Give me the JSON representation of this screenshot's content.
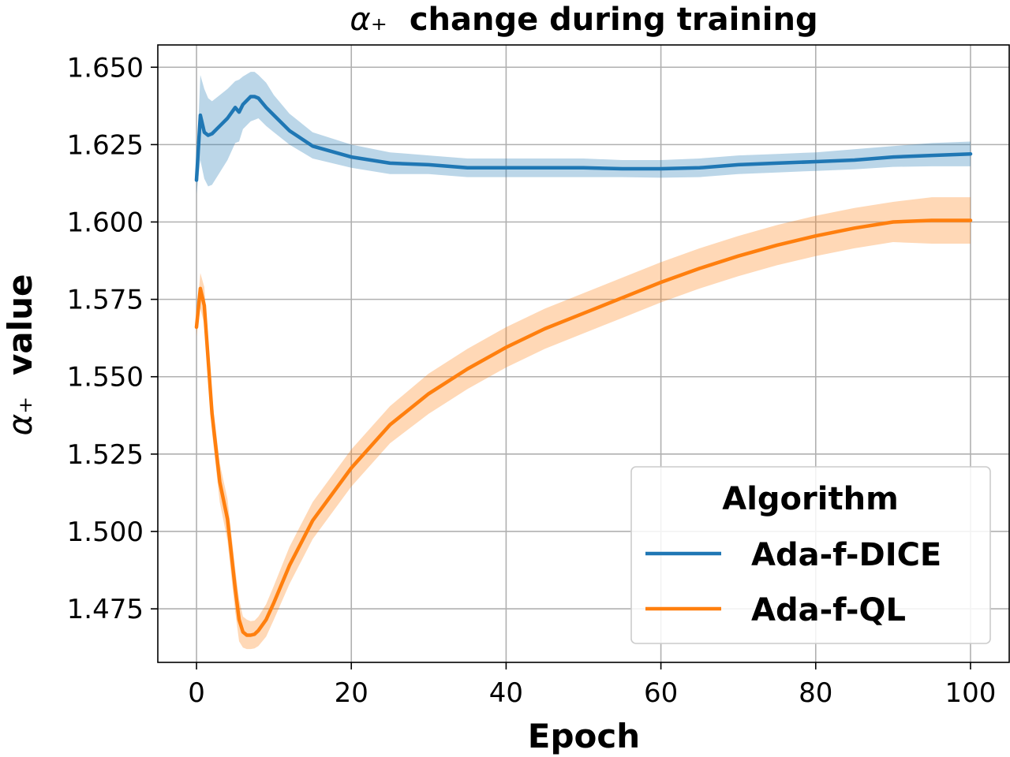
{
  "chart_data": {
    "type": "line",
    "title_symbol": "α₊",
    "title_rest": "change during training",
    "xlabel": "Epoch",
    "ylabel_symbol": "α₊",
    "ylabel_rest": "value",
    "xlim": [
      -5,
      105
    ],
    "ylim": [
      1.4577,
      1.6572
    ],
    "xticks": [
      0,
      20,
      40,
      60,
      80,
      100
    ],
    "xtick_labels": [
      "0",
      "20",
      "40",
      "60",
      "80",
      "100"
    ],
    "yticks": [
      1.475,
      1.5,
      1.525,
      1.55,
      1.575,
      1.6,
      1.625,
      1.65
    ],
    "ytick_labels": [
      "1.475",
      "1.500",
      "1.525",
      "1.550",
      "1.575",
      "1.600",
      "1.625",
      "1.650"
    ],
    "grid": true,
    "legend": {
      "title": "Algorithm",
      "position": "lower-right"
    },
    "series": [
      {
        "name": "Ada-f-DICE",
        "color": "#1f77b4",
        "band_color": "#1f77b4",
        "x": [
          0,
          0.5,
          1,
          1.5,
          2,
          3,
          4,
          5,
          5.5,
          6,
          7,
          7.5,
          8,
          9,
          10,
          12,
          15,
          20,
          25,
          30,
          35,
          40,
          45,
          50,
          55,
          60,
          65,
          70,
          75,
          80,
          85,
          90,
          95,
          100
        ],
        "y": [
          1.6135,
          1.6345,
          1.629,
          1.628,
          1.6285,
          1.631,
          1.6335,
          1.637,
          1.6355,
          1.638,
          1.6405,
          1.6405,
          1.64,
          1.637,
          1.6345,
          1.6295,
          1.6245,
          1.621,
          1.619,
          1.6185,
          1.6175,
          1.6175,
          1.6175,
          1.6175,
          1.6172,
          1.6172,
          1.6175,
          1.6185,
          1.619,
          1.6195,
          1.62,
          1.621,
          1.6215,
          1.622
        ],
        "lower": [
          1.609,
          1.62,
          1.614,
          1.6115,
          1.612,
          1.616,
          1.62,
          1.6255,
          1.626,
          1.63,
          1.6325,
          1.633,
          1.6335,
          1.631,
          1.629,
          1.625,
          1.6205,
          1.6175,
          1.6155,
          1.6155,
          1.6145,
          1.6145,
          1.6145,
          1.6145,
          1.6145,
          1.6143,
          1.6145,
          1.6155,
          1.616,
          1.6165,
          1.617,
          1.6178,
          1.618,
          1.618
        ],
        "upper": [
          1.617,
          1.6475,
          1.643,
          1.64,
          1.639,
          1.641,
          1.643,
          1.6455,
          1.646,
          1.647,
          1.6485,
          1.6485,
          1.6475,
          1.645,
          1.641,
          1.635,
          1.629,
          1.625,
          1.6225,
          1.6215,
          1.6205,
          1.6205,
          1.6205,
          1.6205,
          1.62,
          1.62,
          1.6205,
          1.6215,
          1.622,
          1.6225,
          1.6235,
          1.6245,
          1.6255,
          1.626
        ]
      },
      {
        "name": "Ada-f-QL",
        "color": "#ff7f0e",
        "band_color": "#ff7f0e",
        "x": [
          0,
          0.5,
          1,
          2,
          3,
          4,
          5,
          5.5,
          6,
          6.5,
          7,
          7.5,
          8,
          9,
          10,
          12,
          15,
          20,
          25,
          30,
          35,
          40,
          45,
          50,
          55,
          60,
          65,
          70,
          75,
          80,
          85,
          90,
          95,
          100
        ],
        "y": [
          1.566,
          1.5785,
          1.573,
          1.538,
          1.516,
          1.504,
          1.4815,
          1.4715,
          1.4675,
          1.4665,
          1.4665,
          1.4668,
          1.468,
          1.4715,
          1.477,
          1.489,
          1.5035,
          1.5205,
          1.5345,
          1.5445,
          1.5525,
          1.5595,
          1.5655,
          1.5705,
          1.5755,
          1.5805,
          1.585,
          1.589,
          1.5925,
          1.5955,
          1.598,
          1.6,
          1.6005,
          1.6005
        ],
        "lower": [
          1.563,
          1.572,
          1.567,
          1.532,
          1.5095,
          1.497,
          1.474,
          1.4645,
          1.4625,
          1.462,
          1.462,
          1.4622,
          1.463,
          1.466,
          1.4715,
          1.483,
          1.4975,
          1.5145,
          1.5285,
          1.538,
          1.546,
          1.553,
          1.559,
          1.564,
          1.569,
          1.574,
          1.5785,
          1.5825,
          1.586,
          1.589,
          1.5915,
          1.5935,
          1.593,
          1.593
        ],
        "upper": [
          1.569,
          1.5835,
          1.579,
          1.5435,
          1.522,
          1.5105,
          1.488,
          1.478,
          1.4725,
          1.4715,
          1.471,
          1.4712,
          1.4725,
          1.4765,
          1.4825,
          1.495,
          1.5095,
          1.5265,
          1.5405,
          1.551,
          1.559,
          1.566,
          1.572,
          1.577,
          1.582,
          1.587,
          1.5915,
          1.5955,
          1.599,
          1.602,
          1.6045,
          1.6065,
          1.608,
          1.608
        ]
      }
    ]
  }
}
